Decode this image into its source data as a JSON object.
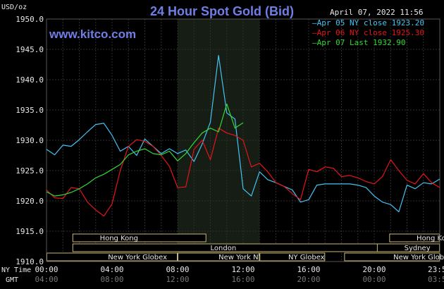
{
  "header": {
    "title": "24 Hour Spot Gold (Bid)",
    "website": "www.kitco.com",
    "unit": "USD/oz",
    "timestamp": "April 07, 2022 11:56"
  },
  "colors": {
    "background": "#000000",
    "grid": "#2e2e2e",
    "highlight": "#161d14",
    "apr05": "#46c3f2",
    "apr06": "#e3151b",
    "apr07": "#34d734",
    "session_fill": "#000000",
    "session_border": "#c8b878",
    "axis_text": "#e8e8e8"
  },
  "chart_data": {
    "type": "line",
    "title": "24 Hour Spot Gold (Bid)",
    "ylabel": "USD/oz",
    "ylim": [
      1910,
      1950
    ],
    "xlim": [
      0,
      24
    ],
    "grid": true,
    "legend_position": "top-right",
    "yticks": [
      "1950.0",
      "1945.0",
      "1940.0",
      "1935.0",
      "1930.0",
      "1925.0",
      "1920.0",
      "1915.0",
      "1910.0"
    ],
    "ytick_values": [
      1950,
      1945,
      1940,
      1935,
      1930,
      1925,
      1920,
      1915,
      1910
    ],
    "xtick_hours": [
      0,
      4,
      8,
      12,
      16,
      20,
      23.983
    ],
    "x_row1_label": "NY Time",
    "x_row2_label": "GMT",
    "xticks_ny": [
      "00:00",
      "04:00",
      "08:00",
      "12:00",
      "16:00",
      "20:00",
      "23:59"
    ],
    "xticks_gmt": [
      "04:00",
      "08:00",
      "12:00",
      "16:00",
      "20:00",
      "00:00",
      "03:59"
    ],
    "highlight_hours": [
      8,
      13
    ],
    "series": [
      {
        "name": "Apr 05 NY close 1923.20",
        "key": "apr05",
        "color": "#46c3f2",
        "x": [
          0,
          0.5,
          1,
          1.5,
          2,
          2.5,
          3,
          3.5,
          4,
          4.5,
          5,
          5.5,
          6,
          6.5,
          7,
          7.5,
          8,
          8.5,
          9,
          9.5,
          10,
          10.5,
          11,
          11.5,
          12,
          12.5,
          13,
          13.5,
          14,
          14.5,
          15,
          15.5,
          16,
          16.5,
          17,
          17.5,
          18,
          18.5,
          19,
          19.5,
          20,
          20.5,
          21,
          21.5,
          22,
          22.5,
          23,
          23.5,
          24
        ],
        "y": [
          1928.5,
          1927.6,
          1929.2,
          1929.0,
          1930.1,
          1931.4,
          1932.6,
          1932.8,
          1930.8,
          1928.2,
          1929.0,
          1927.5,
          1930.2,
          1929.0,
          1927.8,
          1928.6,
          1927.8,
          1928.4,
          1926.5,
          1929.4,
          1933.0,
          1944.0,
          1934.5,
          1933.5,
          1922.0,
          1920.8,
          1924.8,
          1923.5,
          1923.0,
          1922.4,
          1921.8,
          1919.8,
          1920.2,
          1922.6,
          1922.8,
          1922.8,
          1922.8,
          1922.8,
          1922.6,
          1922.2,
          1920.8,
          1919.8,
          1919.4,
          1918.2,
          1922.6,
          1922.0,
          1923.0,
          1922.8,
          1923.6
        ]
      },
      {
        "name": "Apr 06 NY close 1925.30",
        "key": "apr06",
        "color": "#e3151b",
        "x": [
          0,
          0.5,
          1,
          1.5,
          2,
          2.5,
          3,
          3.5,
          4,
          4.5,
          5,
          5.5,
          6,
          6.5,
          7,
          7.5,
          8,
          8.5,
          9,
          9.5,
          10,
          10.5,
          11,
          11.5,
          12,
          12.5,
          13,
          13.5,
          14,
          14.5,
          15,
          15.5,
          16,
          16.5,
          17,
          17.5,
          18,
          18.5,
          19,
          19.5,
          20,
          20.5,
          21,
          21.5,
          22,
          22.5,
          23,
          23.5,
          24
        ],
        "y": [
          1921.8,
          1920.5,
          1920.4,
          1922.2,
          1922.0,
          1919.8,
          1918.5,
          1917.5,
          1919.5,
          1925.0,
          1929.0,
          1930.1,
          1929.8,
          1929.0,
          1927.5,
          1925.7,
          1922.2,
          1922.3,
          1928.5,
          1930.0,
          1926.8,
          1932.0,
          1931.2,
          1930.8,
          1930.0,
          1925.6,
          1926.2,
          1924.8,
          1923.0,
          1922.4,
          1921.2,
          1920.2,
          1925.2,
          1924.8,
          1925.6,
          1925.4,
          1924.0,
          1924.2,
          1923.8,
          1923.2,
          1922.8,
          1924.0,
          1926.8,
          1925.0,
          1923.4,
          1922.8,
          1924.5,
          1923.0,
          1922.2
        ]
      },
      {
        "name": "Apr 07 Last 1932.90",
        "key": "apr07",
        "color": "#34d734",
        "x": [
          0,
          0.5,
          1,
          1.5,
          2,
          2.5,
          3,
          3.5,
          4,
          4.5,
          5,
          5.5,
          6,
          6.5,
          7,
          7.5,
          8,
          8.5,
          9,
          9.5,
          10,
          10.5,
          11,
          11.5,
          12
        ],
        "y": [
          1921.5,
          1920.8,
          1921.0,
          1921.4,
          1922.0,
          1922.8,
          1923.8,
          1924.4,
          1925.2,
          1926.0,
          1927.6,
          1928.2,
          1928.6,
          1927.8,
          1927.6,
          1928.2,
          1926.6,
          1927.8,
          1929.6,
          1931.2,
          1932.0,
          1931.4,
          1936.0,
          1932.0,
          1932.9
        ]
      }
    ],
    "sessions": [
      {
        "name": "Hong Kong",
        "row": 1,
        "start": 1.583,
        "end": 9.75,
        "label_hour": 3.25
      },
      {
        "name": "London",
        "row": 2,
        "start": 1.583,
        "end": 20.833,
        "label_hour": 10.0
      },
      {
        "name": "New York Globex",
        "row": 3,
        "start": 0,
        "end": 8.0,
        "label_hour": 3.75
      },
      {
        "name": "New York NYMEX",
        "row": 3,
        "start": 8.0,
        "end": 13.0,
        "label_hour": 10.5
      },
      {
        "name": "NY Globex",
        "row": 3,
        "start": 13.0,
        "end": 17.0,
        "label_hour": 14.75
      },
      {
        "name": "Sydney",
        "row": 2,
        "start": 20.167,
        "end": 24.0,
        "label_hour": 21.833
      },
      {
        "name": "Hong Kong",
        "row": 1,
        "start": 20.917,
        "end": 24.0,
        "label_hour": 22.583
      },
      {
        "name": "New York Globex",
        "row": 3,
        "start": 18.167,
        "end": 24.0,
        "label_hour": 21.167
      }
    ]
  }
}
